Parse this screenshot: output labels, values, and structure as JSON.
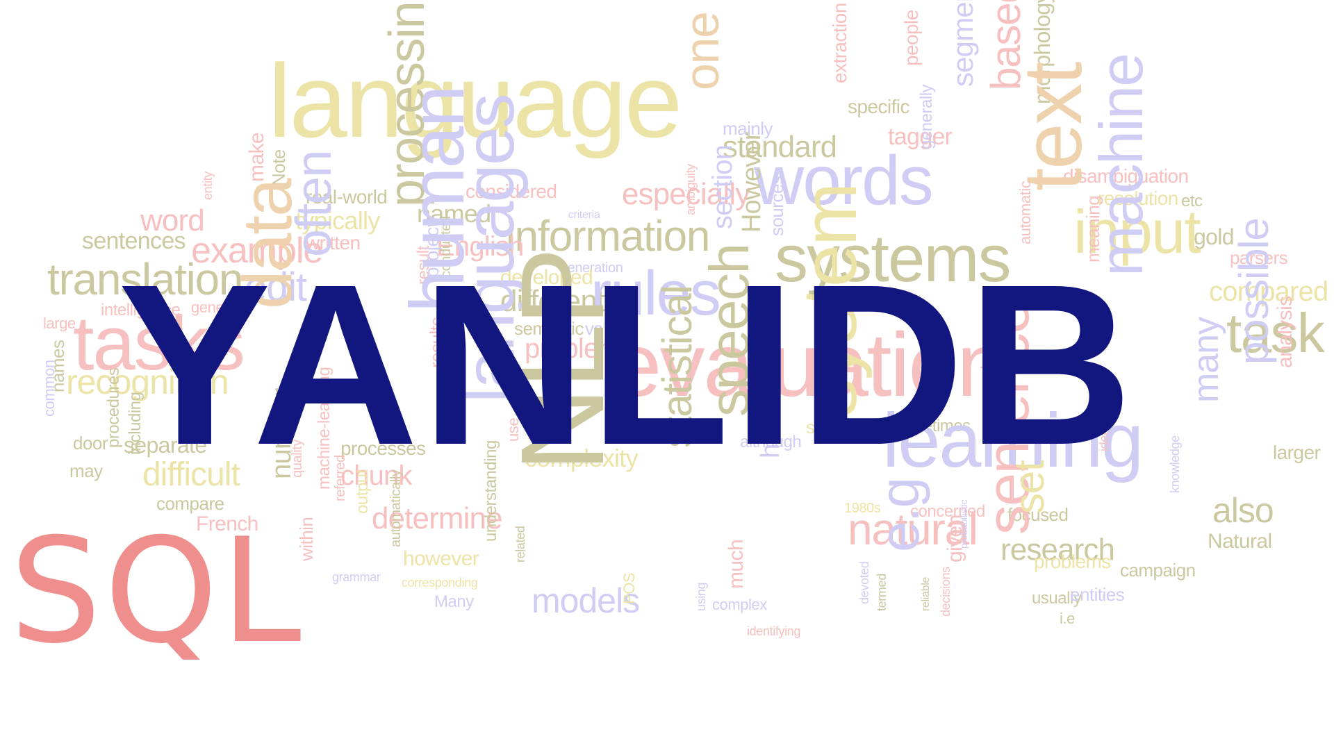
{
  "title": "YANLIDB",
  "badge": "SQL",
  "colors": {
    "title": "#11177e",
    "badge": "#ef8f8d",
    "background": "#ffffff"
  },
  "cloud": [
    {
      "text": "language",
      "tone": "yellow"
    },
    {
      "text": "one",
      "tone": "tan"
    },
    {
      "text": "mainly",
      "tone": "violet"
    },
    {
      "text": "standard",
      "tone": "olive"
    },
    {
      "text": "extraction",
      "tone": "pink"
    },
    {
      "text": "specific",
      "tone": "olive"
    },
    {
      "text": "people",
      "tone": "pink"
    },
    {
      "text": "tagger",
      "tone": "pink"
    },
    {
      "text": "segmentation",
      "tone": "violet"
    },
    {
      "text": "based",
      "tone": "pink"
    },
    {
      "text": "morphology",
      "tone": "olive"
    },
    {
      "text": "considered",
      "tone": "pink"
    },
    {
      "text": "especially",
      "tone": "pink"
    },
    {
      "text": "words",
      "tone": "violet"
    },
    {
      "text": "generally",
      "tone": "violet"
    },
    {
      "text": "disambiguation",
      "tone": "pink"
    },
    {
      "text": "resolution",
      "tone": "yellow"
    },
    {
      "text": "etc",
      "tone": "olive"
    },
    {
      "text": "word",
      "tone": "pink"
    },
    {
      "text": "entity",
      "tone": "pink"
    },
    {
      "text": "make",
      "tone": "pink"
    },
    {
      "text": "Note",
      "tone": "olive"
    },
    {
      "text": "real-world",
      "tone": "olive"
    },
    {
      "text": "typically",
      "tone": "yellow"
    },
    {
      "text": "written",
      "tone": "pink"
    },
    {
      "text": "named",
      "tone": "olive"
    },
    {
      "text": "criteria",
      "tone": "violet"
    },
    {
      "text": "information",
      "tone": "olive"
    },
    {
      "text": "systems",
      "tone": "olive"
    },
    {
      "text": "text",
      "tone": "tan"
    },
    {
      "text": "input",
      "tone": "yellow"
    },
    {
      "text": "gold",
      "tone": "olive"
    },
    {
      "text": "parsers",
      "tone": "pink"
    },
    {
      "text": "sentences",
      "tone": "olive"
    },
    {
      "text": "example",
      "tone": "pink"
    },
    {
      "text": "English",
      "tone": "pink"
    },
    {
      "text": "generation",
      "tone": "violet"
    },
    {
      "text": "ambiguity",
      "tone": "pink"
    },
    {
      "text": "section",
      "tone": "violet"
    },
    {
      "text": "However",
      "tone": "olive"
    },
    {
      "text": "sources",
      "tone": "violet"
    },
    {
      "text": "automatic",
      "tone": "pink"
    },
    {
      "text": "meaning",
      "tone": "pink"
    },
    {
      "text": "compared",
      "tone": "yellow"
    },
    {
      "text": "translation",
      "tone": "olive"
    },
    {
      "text": "edit",
      "tone": "violet"
    },
    {
      "text": "often",
      "tone": "violet"
    },
    {
      "text": "processing",
      "tone": "olive"
    },
    {
      "text": "result",
      "tone": "pink"
    },
    {
      "text": "developed",
      "tone": "yellow"
    },
    {
      "text": "different",
      "tone": "olive"
    },
    {
      "text": "rules",
      "tone": "violet"
    },
    {
      "text": "machine",
      "tone": "violet"
    },
    {
      "text": "intelligence",
      "tone": "pink"
    },
    {
      "text": "general",
      "tone": "pink"
    },
    {
      "text": "large",
      "tone": "pink"
    },
    {
      "text": "tasks",
      "tone": "pink"
    },
    {
      "text": "data",
      "tone": "tan"
    },
    {
      "text": "project",
      "tone": "violet"
    },
    {
      "text": "conducted",
      "tone": "olive"
    },
    {
      "text": "semantic",
      "tone": "olive"
    },
    {
      "text": "vs",
      "tone": "violet"
    },
    {
      "text": "problem",
      "tone": "pink"
    },
    {
      "text": "evaluation",
      "tone": "pink"
    },
    {
      "text": "refer",
      "tone": "pink"
    },
    {
      "text": "task",
      "tone": "olive"
    },
    {
      "text": "names",
      "tone": "olive"
    },
    {
      "text": "common",
      "tone": "violet"
    },
    {
      "text": "recognition",
      "tone": "yellow"
    },
    {
      "text": "human",
      "tone": "violet"
    },
    {
      "text": "results",
      "tone": "pink"
    },
    {
      "text": "languages",
      "tone": "violet"
    },
    {
      "text": "possible",
      "tone": "violet"
    },
    {
      "text": "analysis",
      "tone": "pink"
    },
    {
      "text": "door",
      "tone": "olive"
    },
    {
      "text": "separate",
      "tone": "olive"
    },
    {
      "text": "processes",
      "tone": "olive"
    },
    {
      "text": "serve",
      "tone": "yellow"
    },
    {
      "text": "sometimes",
      "tone": "olive"
    },
    {
      "text": "made",
      "tone": "pink"
    },
    {
      "text": "larger",
      "tone": "olive"
    },
    {
      "text": "may",
      "tone": "olive"
    },
    {
      "text": "procedures",
      "tone": "olive"
    },
    {
      "text": "including",
      "tone": "olive"
    },
    {
      "text": "difficult",
      "tone": "yellow"
    },
    {
      "text": "use",
      "tone": "pink"
    },
    {
      "text": "complexity",
      "tone": "yellow"
    },
    {
      "text": "although",
      "tone": "violet"
    },
    {
      "text": "learning",
      "tone": "violet"
    },
    {
      "text": "identify",
      "tone": "pink"
    },
    {
      "text": "many",
      "tone": "violet"
    },
    {
      "text": "compare",
      "tone": "olive"
    },
    {
      "text": "chunk",
      "tone": "pink"
    },
    {
      "text": "NLP",
      "tone": "olive"
    },
    {
      "text": "statistical",
      "tone": "olive"
    },
    {
      "text": "speech",
      "tone": "olive"
    },
    {
      "text": "system",
      "tone": "yellow"
    },
    {
      "text": "French",
      "tone": "pink"
    },
    {
      "text": "number",
      "tone": "olive"
    },
    {
      "text": "quality",
      "tone": "pink"
    },
    {
      "text": "machine-learning",
      "tone": "pink"
    },
    {
      "text": "referred",
      "tone": "pink"
    },
    {
      "text": "determine",
      "tone": "pink"
    },
    {
      "text": "hand-written",
      "tone": "violet"
    },
    {
      "text": "1980s",
      "tone": "yellow"
    },
    {
      "text": "concerned",
      "tone": "pink"
    },
    {
      "text": "natural",
      "tone": "pink"
    },
    {
      "text": "focused",
      "tone": "olive"
    },
    {
      "text": "research",
      "tone": "olive"
    },
    {
      "text": "knowledge",
      "tone": "violet"
    },
    {
      "text": "also",
      "tone": "olive"
    },
    {
      "text": "Natural",
      "tone": "olive"
    },
    {
      "text": "within",
      "tone": "pink"
    },
    {
      "text": "output",
      "tone": "yellow"
    },
    {
      "text": "automatically",
      "tone": "olive"
    },
    {
      "text": "however",
      "tone": "yellow"
    },
    {
      "text": "grammar",
      "tone": "violet"
    },
    {
      "text": "corresponding",
      "tone": "yellow"
    },
    {
      "text": "e.g",
      "tone": "violet"
    },
    {
      "text": "given",
      "tone": "pink"
    },
    {
      "text": "sentence",
      "tone": "pink"
    },
    {
      "text": "set",
      "tone": "yellow"
    },
    {
      "text": "probabilistic",
      "tone": "violet"
    },
    {
      "text": "problems",
      "tone": "yellow"
    },
    {
      "text": "campaign",
      "tone": "olive"
    },
    {
      "text": "usually",
      "tone": "olive"
    },
    {
      "text": "entities",
      "tone": "violet"
    },
    {
      "text": "Many",
      "tone": "violet"
    },
    {
      "text": "models",
      "tone": "violet"
    },
    {
      "text": "complex",
      "tone": "violet"
    },
    {
      "text": "related",
      "tone": "olive"
    },
    {
      "text": "understanding",
      "tone": "olive"
    },
    {
      "text": "POS",
      "tone": "yellow"
    },
    {
      "text": "using",
      "tone": "violet"
    },
    {
      "text": "much",
      "tone": "pink"
    },
    {
      "text": "identifying",
      "tone": "pink"
    },
    {
      "text": "devoted",
      "tone": "violet"
    },
    {
      "text": "termed",
      "tone": "olive"
    },
    {
      "text": "reliable",
      "tone": "olive"
    },
    {
      "text": "decisions",
      "tone": "pink"
    },
    {
      "text": "i.e",
      "tone": "olive"
    },
    {
      "text": "add",
      "tone": "olive"
    }
  ]
}
